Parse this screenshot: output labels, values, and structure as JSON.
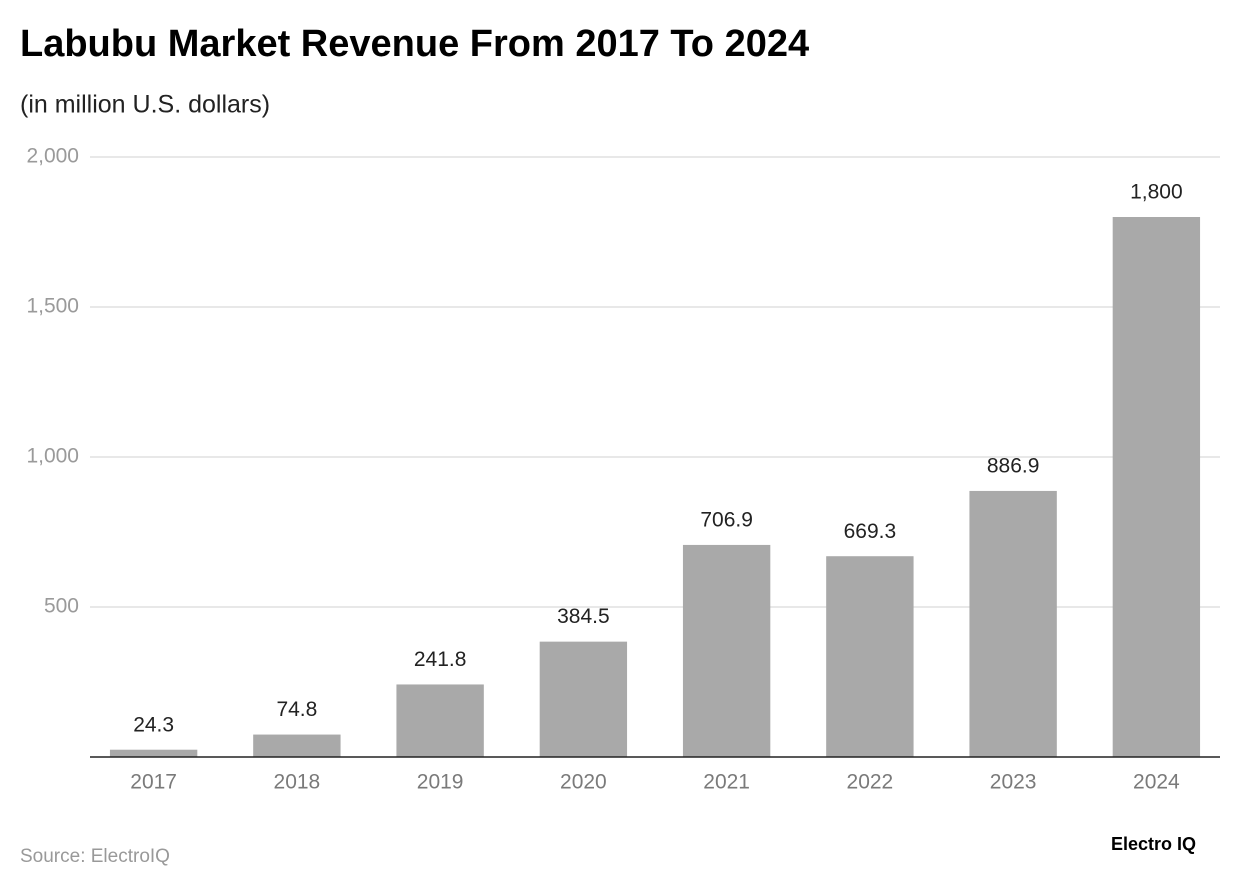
{
  "chart_data": {
    "type": "bar",
    "title": "Labubu Market Revenue From 2017 To 2024",
    "subtitle": "(in million U.S. dollars)",
    "categories": [
      "2017",
      "2018",
      "2019",
      "2020",
      "2021",
      "2022",
      "2023",
      "2024"
    ],
    "values": [
      24.3,
      74.8,
      241.8,
      384.5,
      706.9,
      669.3,
      886.9,
      1800
    ],
    "value_labels": [
      "24.3",
      "74.8",
      "241.8",
      "384.5",
      "706.9",
      "669.3",
      "886.9",
      "1,800"
    ],
    "color": "#a9a9a9",
    "ylim": [
      0,
      2000
    ],
    "yticks": [
      500,
      {
        "value": 1000,
        "label": "1,000"
      },
      {
        "value": 1500,
        "label": "1,500"
      },
      {
        "value": 2000,
        "label": "2,000"
      }
    ],
    "grid": true,
    "source": "Source: ElectroIQ",
    "brand": "Electro IQ"
  }
}
